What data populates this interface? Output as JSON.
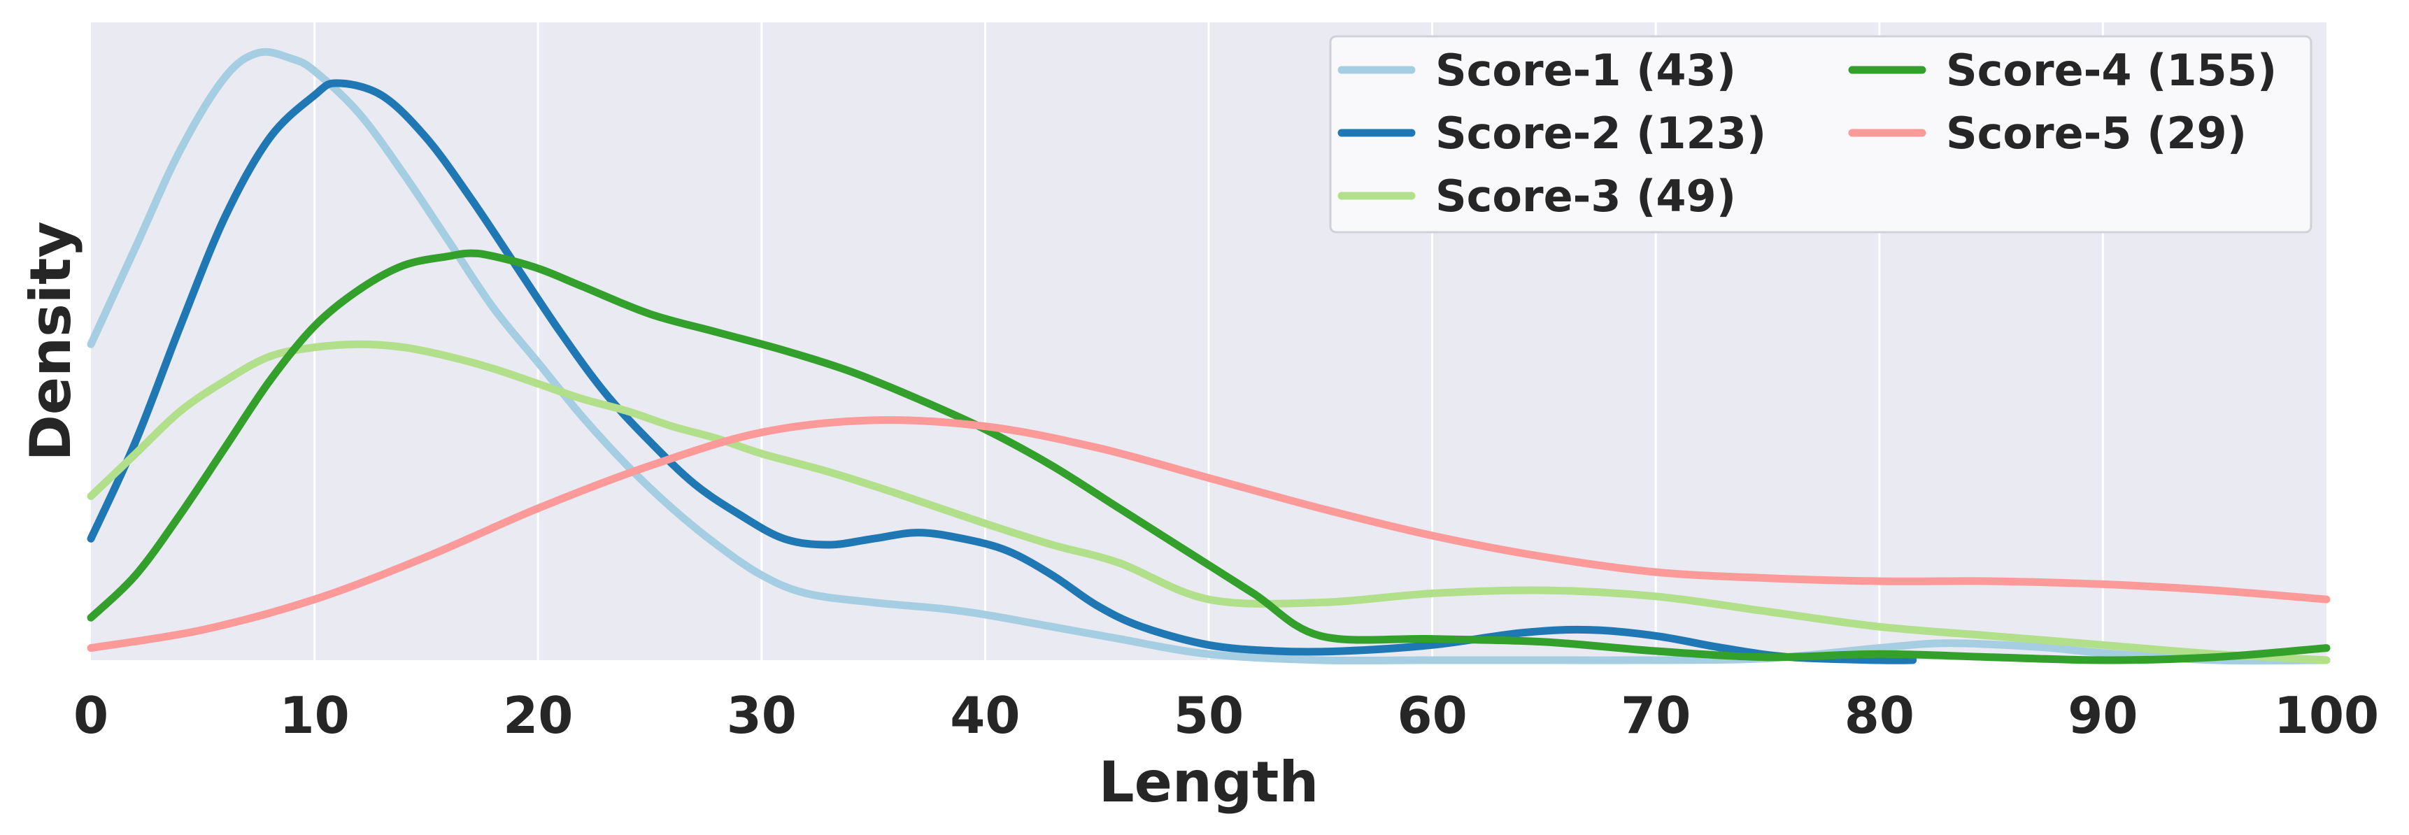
{
  "chart_data": {
    "type": "line",
    "title": "",
    "xlabel": "Length",
    "ylabel": "Density",
    "xlim": [
      0,
      100
    ],
    "ylim": [
      0,
      1.05
    ],
    "x_ticks": [
      "0",
      "10",
      "20",
      "30",
      "40",
      "50",
      "60",
      "70",
      "80",
      "90",
      "100"
    ],
    "y_ticks_visible": false,
    "grid": "vertical",
    "legend_placement": "top-right",
    "legend_columns": 2,
    "background": "#eaeaf2",
    "series": [
      {
        "name": "Score-1 (43)",
        "color": "#a6cee3",
        "points": [
          [
            0,
            0.52
          ],
          [
            2,
            0.68
          ],
          [
            4,
            0.84
          ],
          [
            6,
            0.96
          ],
          [
            7.5,
            1.0
          ],
          [
            9,
            0.99
          ],
          [
            10,
            0.97
          ],
          [
            12,
            0.9
          ],
          [
            14,
            0.8
          ],
          [
            16,
            0.69
          ],
          [
            18,
            0.58
          ],
          [
            20,
            0.49
          ],
          [
            22,
            0.4
          ],
          [
            24,
            0.32
          ],
          [
            26,
            0.25
          ],
          [
            28,
            0.19
          ],
          [
            30,
            0.14
          ],
          [
            32,
            0.11
          ],
          [
            35,
            0.095
          ],
          [
            38,
            0.085
          ],
          [
            40,
            0.075
          ],
          [
            43,
            0.055
          ],
          [
            46,
            0.035
          ],
          [
            50,
            0.01
          ],
          [
            55,
            0.0
          ],
          [
            60,
            0.0
          ],
          [
            65,
            0.0
          ],
          [
            70,
            0.0
          ],
          [
            75,
            0.003
          ],
          [
            80,
            0.02
          ],
          [
            83,
            0.028
          ],
          [
            87,
            0.022
          ],
          [
            90,
            0.012
          ],
          [
            95,
            0.0
          ],
          [
            100,
            0.0
          ]
        ]
      },
      {
        "name": "Score-2 (123)",
        "color": "#1f78b4",
        "points": [
          [
            0,
            0.2
          ],
          [
            2,
            0.36
          ],
          [
            4,
            0.55
          ],
          [
            6,
            0.73
          ],
          [
            8,
            0.86
          ],
          [
            10,
            0.93
          ],
          [
            11,
            0.95
          ],
          [
            13,
            0.93
          ],
          [
            15,
            0.86
          ],
          [
            17,
            0.76
          ],
          [
            19,
            0.65
          ],
          [
            21,
            0.54
          ],
          [
            23,
            0.44
          ],
          [
            25,
            0.36
          ],
          [
            27,
            0.29
          ],
          [
            29,
            0.24
          ],
          [
            31,
            0.2
          ],
          [
            33,
            0.19
          ],
          [
            35,
            0.2
          ],
          [
            37,
            0.21
          ],
          [
            39,
            0.2
          ],
          [
            41,
            0.18
          ],
          [
            43,
            0.14
          ],
          [
            45,
            0.09
          ],
          [
            47,
            0.055
          ],
          [
            50,
            0.025
          ],
          [
            53,
            0.015
          ],
          [
            56,
            0.015
          ],
          [
            60,
            0.025
          ],
          [
            64,
            0.045
          ],
          [
            67,
            0.05
          ],
          [
            70,
            0.04
          ],
          [
            73,
            0.02
          ],
          [
            76,
            0.005
          ],
          [
            80,
            0.0
          ],
          [
            81.5,
            0.0
          ]
        ]
      },
      {
        "name": "Score-3 (49)",
        "color": "#b2df8a",
        "points": [
          [
            0,
            0.27
          ],
          [
            2,
            0.34
          ],
          [
            4,
            0.41
          ],
          [
            6,
            0.46
          ],
          [
            8,
            0.5
          ],
          [
            10,
            0.515
          ],
          [
            12,
            0.52
          ],
          [
            14,
            0.515
          ],
          [
            16,
            0.5
          ],
          [
            18,
            0.48
          ],
          [
            20,
            0.455
          ],
          [
            22,
            0.43
          ],
          [
            24,
            0.41
          ],
          [
            26,
            0.385
          ],
          [
            28,
            0.365
          ],
          [
            30,
            0.34
          ],
          [
            33,
            0.31
          ],
          [
            36,
            0.275
          ],
          [
            40,
            0.225
          ],
          [
            43,
            0.19
          ],
          [
            46,
            0.16
          ],
          [
            50,
            0.1
          ],
          [
            55,
            0.095
          ],
          [
            60,
            0.11
          ],
          [
            65,
            0.115
          ],
          [
            70,
            0.105
          ],
          [
            75,
            0.08
          ],
          [
            80,
            0.055
          ],
          [
            85,
            0.04
          ],
          [
            90,
            0.025
          ],
          [
            95,
            0.01
          ],
          [
            100,
            0.0
          ]
        ]
      },
      {
        "name": "Score-4 (155)",
        "color": "#33a02c",
        "points": [
          [
            0,
            0.07
          ],
          [
            2,
            0.14
          ],
          [
            4,
            0.24
          ],
          [
            6,
            0.35
          ],
          [
            8,
            0.46
          ],
          [
            10,
            0.55
          ],
          [
            12,
            0.61
          ],
          [
            14,
            0.65
          ],
          [
            16,
            0.665
          ],
          [
            17,
            0.67
          ],
          [
            18,
            0.665
          ],
          [
            20,
            0.645
          ],
          [
            22,
            0.615
          ],
          [
            25,
            0.57
          ],
          [
            28,
            0.54
          ],
          [
            31,
            0.51
          ],
          [
            34,
            0.475
          ],
          [
            37,
            0.43
          ],
          [
            40,
            0.38
          ],
          [
            43,
            0.32
          ],
          [
            46,
            0.25
          ],
          [
            49,
            0.18
          ],
          [
            52,
            0.11
          ],
          [
            55,
            0.04
          ],
          [
            60,
            0.035
          ],
          [
            65,
            0.03
          ],
          [
            70,
            0.015
          ],
          [
            75,
            0.005
          ],
          [
            80,
            0.01
          ],
          [
            85,
            0.005
          ],
          [
            90,
            0.0
          ],
          [
            95,
            0.005
          ],
          [
            100,
            0.02
          ]
        ]
      },
      {
        "name": "Score-5 (29)",
        "color": "#fb9a99",
        "points": [
          [
            0,
            0.02
          ],
          [
            5,
            0.05
          ],
          [
            10,
            0.1
          ],
          [
            15,
            0.17
          ],
          [
            20,
            0.25
          ],
          [
            25,
            0.32
          ],
          [
            30,
            0.375
          ],
          [
            35,
            0.395
          ],
          [
            40,
            0.385
          ],
          [
            45,
            0.35
          ],
          [
            50,
            0.3
          ],
          [
            55,
            0.25
          ],
          [
            60,
            0.205
          ],
          [
            65,
            0.17
          ],
          [
            70,
            0.145
          ],
          [
            75,
            0.135
          ],
          [
            80,
            0.13
          ],
          [
            85,
            0.13
          ],
          [
            90,
            0.125
          ],
          [
            95,
            0.115
          ],
          [
            100,
            0.1
          ]
        ]
      }
    ]
  }
}
